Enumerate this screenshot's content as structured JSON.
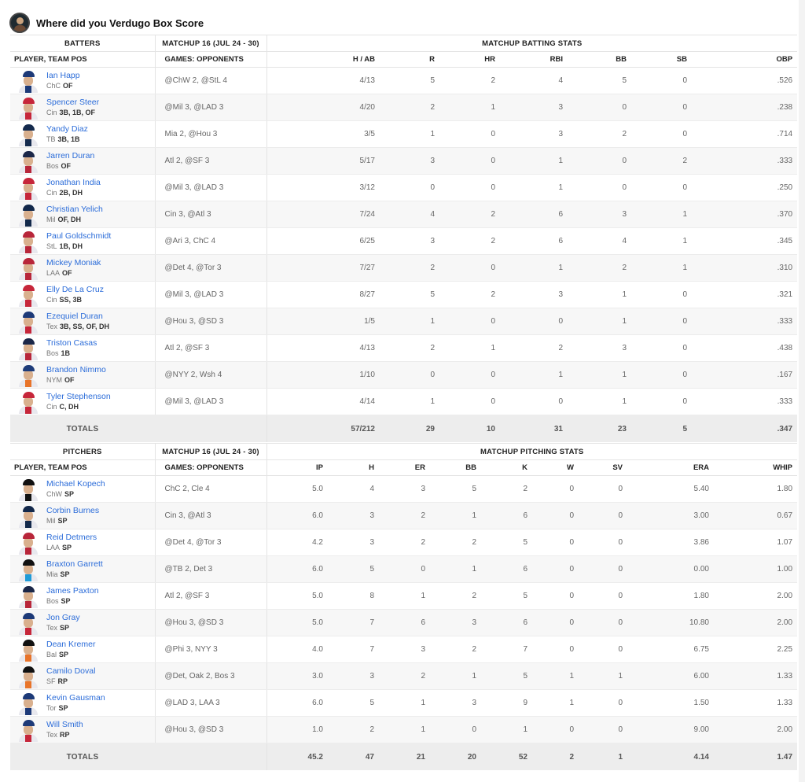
{
  "title": "Where did you Verdugo Box Score",
  "batting": {
    "group_headers": {
      "players": "BATTERS",
      "matchup": "MATCHUP 16 (JUL 24 - 30)",
      "stats": "MATCHUP BATTING STATS"
    },
    "columns": {
      "player": "PLAYER, TEAM POS",
      "games": "GAMES: OPPONENTS",
      "stats": [
        "H / AB",
        "R",
        "HR",
        "RBI",
        "BB",
        "SB",
        "OBP"
      ]
    },
    "rows": [
      {
        "name": "Ian Happ",
        "team": "ChC",
        "pos": "OF",
        "opp": "@ChW 2, @StL 4",
        "stats": [
          "4/13",
          "5",
          "2",
          "4",
          "5",
          "0",
          ".526"
        ],
        "cap": "#1d3a78",
        "stripe": "#1d3a78"
      },
      {
        "name": "Spencer Steer",
        "team": "Cin",
        "pos": "3B, 1B, OF",
        "opp": "@Mil 3, @LAD 3",
        "stats": [
          "4/20",
          "2",
          "1",
          "3",
          "0",
          "0",
          ".238"
        ],
        "cap": "#c6263a",
        "stripe": "#c6263a"
      },
      {
        "name": "Yandy Diaz",
        "team": "TB",
        "pos": "3B, 1B",
        "opp": "Mia 2, @Hou 3",
        "stats": [
          "3/5",
          "1",
          "0",
          "3",
          "2",
          "0",
          ".714"
        ],
        "cap": "#142a4d",
        "stripe": "#142a4d"
      },
      {
        "name": "Jarren Duran",
        "team": "Bos",
        "pos": "OF",
        "opp": "Atl 2, @SF 3",
        "stats": [
          "5/17",
          "3",
          "0",
          "1",
          "0",
          "2",
          ".333"
        ],
        "cap": "#1b2748",
        "stripe": "#b8263a"
      },
      {
        "name": "Jonathan India",
        "team": "Cin",
        "pos": "2B, DH",
        "opp": "@Mil 3, @LAD 3",
        "stats": [
          "3/12",
          "0",
          "0",
          "1",
          "0",
          "0",
          ".250"
        ],
        "cap": "#c6263a",
        "stripe": "#c6263a"
      },
      {
        "name": "Christian Yelich",
        "team": "Mil",
        "pos": "OF, DH",
        "opp": "Cin 3, @Atl 3",
        "stats": [
          "7/24",
          "4",
          "2",
          "6",
          "3",
          "1",
          ".370"
        ],
        "cap": "#13294b",
        "stripe": "#13294b"
      },
      {
        "name": "Paul Goldschmidt",
        "team": "StL",
        "pos": "1B, DH",
        "opp": "@Ari 3, ChC 4",
        "stats": [
          "6/25",
          "3",
          "2",
          "6",
          "4",
          "1",
          ".345"
        ],
        "cap": "#b8263a",
        "stripe": "#b8263a"
      },
      {
        "name": "Mickey Moniak",
        "team": "LAA",
        "pos": "OF",
        "opp": "@Det 4, @Tor 3",
        "stats": [
          "7/27",
          "2",
          "0",
          "1",
          "2",
          "1",
          ".310"
        ],
        "cap": "#b8263a",
        "stripe": "#b8263a"
      },
      {
        "name": "Elly De La Cruz",
        "team": "Cin",
        "pos": "SS, 3B",
        "opp": "@Mil 3, @LAD 3",
        "stats": [
          "8/27",
          "5",
          "2",
          "3",
          "1",
          "0",
          ".321"
        ],
        "cap": "#c6263a",
        "stripe": "#c6263a"
      },
      {
        "name": "Ezequiel Duran",
        "team": "Tex",
        "pos": "3B, SS, OF, DH",
        "opp": "@Hou 3, @SD 3",
        "stats": [
          "1/5",
          "1",
          "0",
          "0",
          "1",
          "0",
          ".333"
        ],
        "cap": "#1d3a78",
        "stripe": "#c6263a"
      },
      {
        "name": "Triston Casas",
        "team": "Bos",
        "pos": "1B",
        "opp": "Atl 2, @SF 3",
        "stats": [
          "4/13",
          "2",
          "1",
          "2",
          "3",
          "0",
          ".438"
        ],
        "cap": "#1b2748",
        "stripe": "#b8263a"
      },
      {
        "name": "Brandon Nimmo",
        "team": "NYM",
        "pos": "OF",
        "opp": "@NYY 2, Wsh 4",
        "stats": [
          "1/10",
          "0",
          "0",
          "1",
          "1",
          "0",
          ".167"
        ],
        "cap": "#1f3d7a",
        "stripe": "#e8742a"
      },
      {
        "name": "Tyler Stephenson",
        "team": "Cin",
        "pos": "C, DH",
        "opp": "@Mil 3, @LAD 3",
        "stats": [
          "4/14",
          "1",
          "0",
          "0",
          "1",
          "0",
          ".333"
        ],
        "cap": "#c6263a",
        "stripe": "#c6263a"
      }
    ],
    "totals": {
      "label": "TOTALS",
      "stats": [
        "57/212",
        "29",
        "10",
        "31",
        "23",
        "5",
        ".347"
      ]
    }
  },
  "pitching": {
    "group_headers": {
      "players": "PITCHERS",
      "matchup": "MATCHUP 16 (JUL 24 - 30)",
      "stats": "MATCHUP PITCHING STATS"
    },
    "columns": {
      "player": "PLAYER, TEAM POS",
      "games": "GAMES: OPPONENTS",
      "stats": [
        "IP",
        "H",
        "ER",
        "BB",
        "K",
        "W",
        "SV",
        "ERA",
        "WHIP"
      ]
    },
    "rows": [
      {
        "name": "Michael Kopech",
        "team": "ChW",
        "pos": "SP",
        "opp": "ChC 2, Cle 4",
        "stats": [
          "5.0",
          "4",
          "3",
          "5",
          "2",
          "0",
          "0",
          "5.40",
          "1.80"
        ],
        "cap": "#111111",
        "stripe": "#111111"
      },
      {
        "name": "Corbin Burnes",
        "team": "Mil",
        "pos": "SP",
        "opp": "Cin 3, @Atl 3",
        "stats": [
          "6.0",
          "3",
          "2",
          "1",
          "6",
          "0",
          "0",
          "3.00",
          "0.67"
        ],
        "cap": "#13294b",
        "stripe": "#13294b"
      },
      {
        "name": "Reid Detmers",
        "team": "LAA",
        "pos": "SP",
        "opp": "@Det 4, @Tor 3",
        "stats": [
          "4.2",
          "3",
          "2",
          "2",
          "5",
          "0",
          "0",
          "3.86",
          "1.07"
        ],
        "cap": "#b8263a",
        "stripe": "#b8263a"
      },
      {
        "name": "Braxton Garrett",
        "team": "Mia",
        "pos": "SP",
        "opp": "@TB 2, Det 3",
        "stats": [
          "6.0",
          "5",
          "0",
          "1",
          "6",
          "0",
          "0",
          "0.00",
          "1.00"
        ],
        "cap": "#111111",
        "stripe": "#1f9bd7"
      },
      {
        "name": "James Paxton",
        "team": "Bos",
        "pos": "SP",
        "opp": "Atl 2, @SF 3",
        "stats": [
          "5.0",
          "8",
          "1",
          "2",
          "5",
          "0",
          "0",
          "1.80",
          "2.00"
        ],
        "cap": "#1b2748",
        "stripe": "#b8263a"
      },
      {
        "name": "Jon Gray",
        "team": "Tex",
        "pos": "SP",
        "opp": "@Hou 3, @SD 3",
        "stats": [
          "5.0",
          "7",
          "6",
          "3",
          "6",
          "0",
          "0",
          "10.80",
          "2.00"
        ],
        "cap": "#1d3a78",
        "stripe": "#c6263a"
      },
      {
        "name": "Dean Kremer",
        "team": "Bal",
        "pos": "SP",
        "opp": "@Phi 3, NYY 3",
        "stats": [
          "4.0",
          "7",
          "3",
          "2",
          "7",
          "0",
          "0",
          "6.75",
          "2.25"
        ],
        "cap": "#111111",
        "stripe": "#e8742a"
      },
      {
        "name": "Camilo Doval",
        "team": "SF",
        "pos": "RP",
        "opp": "@Det, Oak 2, Bos 3",
        "stats": [
          "3.0",
          "3",
          "2",
          "1",
          "5",
          "1",
          "1",
          "6.00",
          "1.33"
        ],
        "cap": "#111111",
        "stripe": "#e8742a"
      },
      {
        "name": "Kevin Gausman",
        "team": "Tor",
        "pos": "SP",
        "opp": "@LAD 3, LAA 3",
        "stats": [
          "6.0",
          "5",
          "1",
          "3",
          "9",
          "1",
          "0",
          "1.50",
          "1.33"
        ],
        "cap": "#1d3a78",
        "stripe": "#1d3a78"
      },
      {
        "name": "Will Smith",
        "team": "Tex",
        "pos": "RP",
        "opp": "@Hou 3, @SD 3",
        "stats": [
          "1.0",
          "2",
          "1",
          "0",
          "1",
          "0",
          "0",
          "9.00",
          "2.00"
        ],
        "cap": "#1d3a78",
        "stripe": "#c6263a"
      }
    ],
    "totals": {
      "label": "TOTALS",
      "stats": [
        "45.2",
        "47",
        "21",
        "20",
        "52",
        "2",
        "1",
        "4.14",
        "1.47"
      ]
    }
  }
}
